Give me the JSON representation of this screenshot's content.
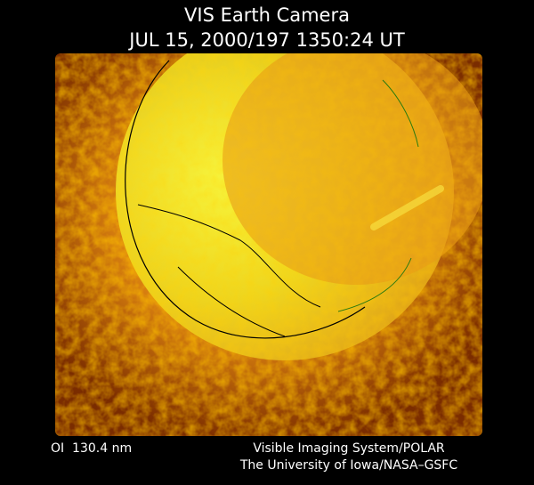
{
  "header": {
    "title": "VIS Earth Camera",
    "subtitle": "JUL 15, 2000/197 1350:24 UT"
  },
  "footer": {
    "filter": "OI  130.4 nm",
    "instrument": "Visible Imaging System/POLAR",
    "institution": "The University of Iowa/NASA–GSFC"
  }
}
